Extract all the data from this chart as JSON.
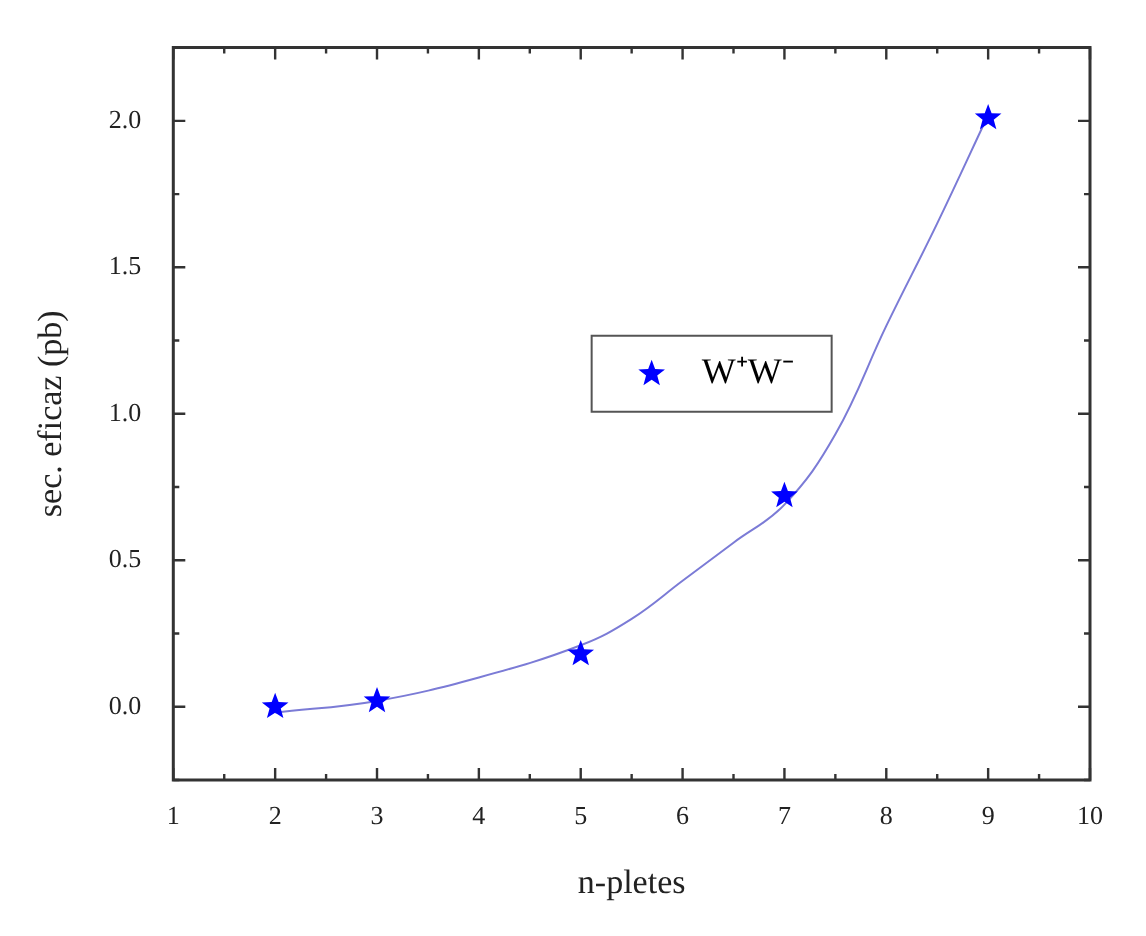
{
  "chart_data": {
    "type": "scatter",
    "xlabel": "n-pletes",
    "ylabel": "sec. eficaz (pb)",
    "xlim": [
      1,
      10
    ],
    "ylim": [
      -0.25,
      2.25
    ],
    "xticks": [
      1,
      {
        "value": 1.5,
        "label": null
      },
      2,
      {
        "value": 2.5,
        "label": null
      },
      3,
      {
        "value": 3.5,
        "label": null
      },
      4,
      {
        "value": 4.5,
        "label": null
      },
      5,
      {
        "value": 5.5,
        "label": null
      },
      6,
      {
        "value": 6.5,
        "label": null
      },
      7,
      {
        "value": 7.5,
        "label": null
      },
      8,
      {
        "value": 8.5,
        "label": null
      },
      9,
      {
        "value": 9.5,
        "label": null
      },
      10
    ],
    "yticks": [
      {
        "value": -0.25,
        "label": null
      },
      {
        "value": 0,
        "label": "0.0"
      },
      {
        "value": 0.25,
        "label": null
      },
      {
        "value": 0.5,
        "label": "0.5"
      },
      {
        "value": 0.75,
        "label": null
      },
      {
        "value": 1,
        "label": "1.0"
      },
      {
        "value": 1.25,
        "label": null
      },
      {
        "value": 1.5,
        "label": "1.5"
      },
      {
        "value": 1.75,
        "label": null
      },
      {
        "value": 2,
        "label": "2.0"
      },
      {
        "value": 2.25,
        "label": null
      }
    ],
    "grid": false,
    "legend": "center",
    "marker": "star",
    "series": [
      {
        "name": "W⁺W⁻",
        "color": "#0000ff",
        "x": [
          2,
          3,
          5,
          7,
          9
        ],
        "values": [
          0.0,
          0.02,
          0.18,
          0.72,
          2.01
        ]
      },
      {
        "type": "line",
        "color": "#7b7bd6",
        "marker": "none",
        "line_style": "solid",
        "x": [
          2,
          3,
          4,
          5,
          5.5,
          6,
          6.5,
          7,
          7.5,
          8,
          8.5,
          9
        ],
        "values": [
          -0.02,
          0.02,
          0.1,
          0.21,
          0.3,
          0.43,
          0.56,
          0.69,
          0.93,
          1.3,
          1.65,
          2.02
        ]
      }
    ]
  }
}
